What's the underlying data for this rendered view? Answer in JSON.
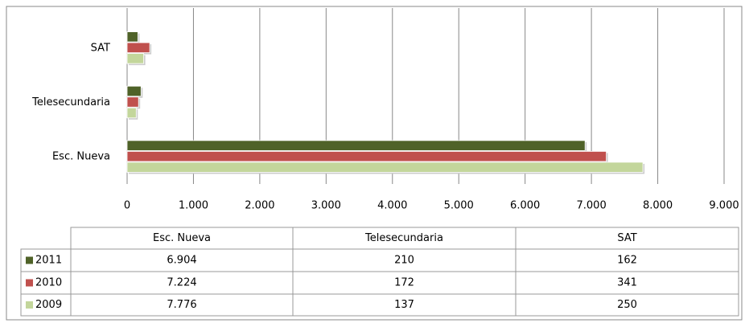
{
  "chart_data": {
    "type": "bar",
    "orientation": "horizontal",
    "categories": [
      "Esc. Nueva",
      "Telesecundaria",
      "SAT"
    ],
    "series": [
      {
        "name": "2011",
        "color": "#4f6228",
        "values": [
          6904,
          210,
          162
        ],
        "value_labels": [
          "6.904",
          "210",
          "162"
        ]
      },
      {
        "name": "2010",
        "color": "#c0504d",
        "values": [
          7224,
          172,
          341
        ],
        "value_labels": [
          "7.224",
          "172",
          "341"
        ]
      },
      {
        "name": "2009",
        "color": "#c3d69b",
        "values": [
          7776,
          137,
          250
        ],
        "value_labels": [
          "7.776",
          "137",
          "250"
        ]
      }
    ],
    "xlim": [
      0,
      9000
    ],
    "xticks": [
      0,
      {
        "value": 1000,
        "label": "1.000"
      },
      {
        "value": 2000,
        "label": "2.000"
      },
      {
        "value": 3000,
        "label": "3.000"
      },
      {
        "value": 4000,
        "label": "4.000"
      },
      {
        "value": 5000,
        "label": "5.000"
      },
      {
        "value": 6000,
        "label": "6.000"
      },
      {
        "value": 7000,
        "label": "7.000"
      },
      {
        "value": 8000,
        "label": "8.000"
      },
      {
        "value": 9000,
        "label": "9.000"
      }
    ],
    "grid": true,
    "data_table": true
  }
}
